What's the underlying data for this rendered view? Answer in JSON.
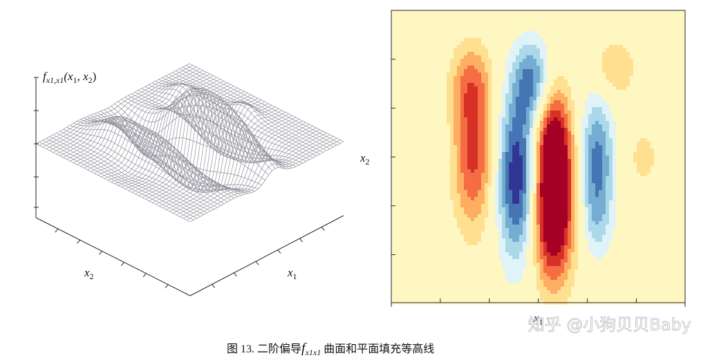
{
  "surface_plot": {
    "z_label": [
      "f",
      "x1,x1",
      "(x",
      "1",
      ", x",
      "2",
      ")"
    ],
    "x2_label": [
      "x",
      "2"
    ],
    "x1_label": [
      "x",
      "1"
    ]
  },
  "contour_plot": {
    "x2_label": [
      "x",
      "2"
    ],
    "x1_label": [
      "x",
      "1"
    ]
  },
  "caption": [
    "图 13. 二阶偏导",
    "f",
    "x1x1",
    " 曲面和平面填充等高线"
  ],
  "watermark": "知乎 @小狗贝贝Baby"
}
